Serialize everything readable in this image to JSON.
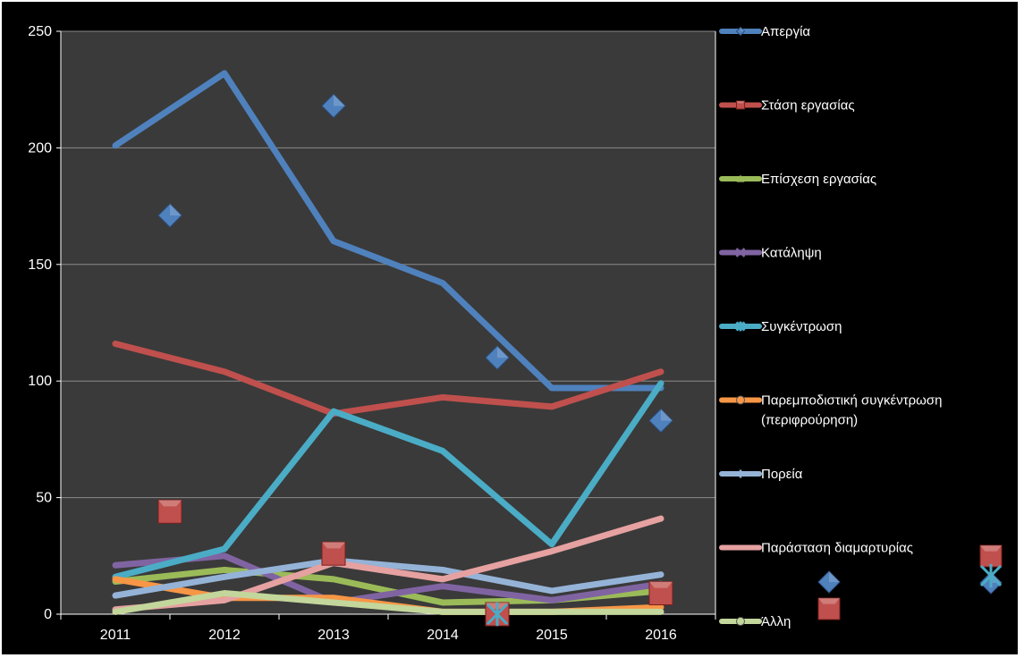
{
  "chart_data": {
    "type": "line",
    "categories": [
      "2011",
      "2012",
      "2013",
      "2014",
      "2015",
      "2016"
    ],
    "ylim": [
      0,
      250
    ],
    "yticks": [
      0,
      50,
      100,
      150,
      200,
      250
    ],
    "grid": true,
    "legend_position": "right",
    "series": [
      {
        "name": "Απεργία",
        "color": "#4F81BD",
        "marker": "diamond",
        "values": [
          201,
          232,
          160,
          142,
          97,
          97
        ]
      },
      {
        "name": "Στάση εργασίας",
        "color": "#C0504D",
        "marker": "square",
        "values": [
          116,
          104,
          86,
          93,
          89,
          104
        ]
      },
      {
        "name": "Επίσχεση εργασίας",
        "color": "#9BBB59",
        "marker": "triangle",
        "values": [
          14,
          19,
          15,
          5,
          6,
          10
        ]
      },
      {
        "name": "Κατάληψη",
        "color": "#8064A2",
        "marker": "x",
        "values": [
          21,
          25,
          5,
          12,
          6,
          13
        ]
      },
      {
        "name": "Συγκέντρωση",
        "color": "#4BACC6",
        "marker": "star",
        "values": [
          16,
          28,
          87,
          70,
          30,
          99
        ]
      },
      {
        "name": "Παρεμποδιστική συγκέντρωση (περιφρούρηση)",
        "color": "#F79646",
        "marker": "circle",
        "values": [
          15,
          7,
          7,
          1,
          1,
          3
        ]
      },
      {
        "name": "Πορεία",
        "color": "#95B3D7",
        "marker": "plus",
        "values": [
          8,
          16,
          23,
          19,
          10,
          17
        ]
      },
      {
        "name": "Παράσταση διαμαρτυρίας",
        "color": "#E6A1A1",
        "marker": "dash",
        "values": [
          2,
          6,
          22,
          15,
          27,
          41
        ]
      },
      {
        "name": "Άλλη",
        "color": "#C3D69B",
        "marker": "circle",
        "values": [
          1,
          9,
          5,
          1,
          1,
          1
        ]
      }
    ],
    "markers": [
      {
        "series": "Απεργία",
        "shape": "diamond",
        "x": 1.5,
        "y": 171
      },
      {
        "series": "Απεργία",
        "shape": "diamond",
        "x": 3.0,
        "y": 218
      },
      {
        "series": "Απεργία",
        "shape": "diamond",
        "x": 4.5,
        "y": 110
      },
      {
        "series": "Απεργία",
        "shape": "diamond",
        "x": 6.0,
        "y": 83
      },
      {
        "series": "Στάση εργασίας",
        "shape": "square",
        "x": 1.5,
        "y": 44
      },
      {
        "series": "Στάση εργασίας",
        "shape": "square",
        "x": 3.0,
        "y": 26
      },
      {
        "series": "Στάση εργασίας",
        "shape": "square",
        "x": 4.5,
        "y": 0
      },
      {
        "series": "Στάση εργασίας",
        "shape": "square",
        "x": 6.0,
        "y": 9
      },
      {
        "series": "Συγκέντρωση",
        "shape": "star",
        "x": 4.5,
        "y": 0
      }
    ],
    "legend_markers": [
      {
        "shape": "diamond",
        "color": "#4F81BD",
        "slot": "legend-right-1"
      },
      {
        "shape": "square",
        "color": "#C0504D",
        "slot": "legend-right-2"
      },
      {
        "shape": "diamond",
        "color": "#4F81BD",
        "slot": "legend-far-1"
      },
      {
        "shape": "square",
        "color": "#C0504D",
        "slot": "legend-far-2"
      },
      {
        "shape": "star",
        "color": "#4BACC6",
        "slot": "legend-far-3"
      }
    ]
  },
  "colors": {
    "background": "#000000",
    "axis": "#ffffff",
    "grid": "#8a8a8a",
    "plot_area": "#3a3a3a",
    "text": "#ffffff"
  }
}
